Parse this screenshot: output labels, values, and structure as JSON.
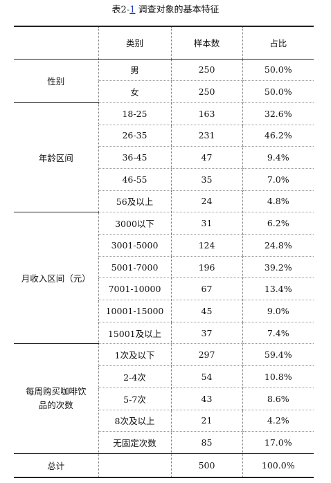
{
  "caption": {
    "prefix": "表2-",
    "number": "1",
    "title": "调查对象的基本特征"
  },
  "headers": {
    "group": "",
    "category": "类别",
    "count": "样本数",
    "share": "占比"
  },
  "groups": [
    {
      "name": "性别",
      "rows": [
        {
          "category": "男",
          "count": "250",
          "share": "50.0%"
        },
        {
          "category": "女",
          "count": "250",
          "share": "50.0%"
        }
      ]
    },
    {
      "name": "年龄区间",
      "rows": [
        {
          "category": "18-25",
          "count": "163",
          "share": "32.6%"
        },
        {
          "category": "26-35",
          "count": "231",
          "share": "46.2%"
        },
        {
          "category": "36-45",
          "count": "47",
          "share": "9.4%"
        },
        {
          "category": "46-55",
          "count": "35",
          "share": "7.0%"
        },
        {
          "category": "56及以上",
          "count": "24",
          "share": "4.8%"
        }
      ]
    },
    {
      "name": "月收入区间（元）",
      "rows": [
        {
          "category": "3000以下",
          "count": "31",
          "share": "6.2%"
        },
        {
          "category": "3001-5000",
          "count": "124",
          "share": "24.8%"
        },
        {
          "category": "5001-7000",
          "count": "196",
          "share": "39.2%"
        },
        {
          "category": "7001-10000",
          "count": "67",
          "share": "13.4%"
        },
        {
          "category": "10001-15000",
          "count": "45",
          "share": "9.0%"
        },
        {
          "category": "15001及以上",
          "count": "37",
          "share": "7.4%"
        }
      ]
    },
    {
      "name": "每周购买咖啡饮品的次数",
      "rows": [
        {
          "category": "1次及以下",
          "count": "297",
          "share": "59.4%"
        },
        {
          "category": "2-4次",
          "count": "54",
          "share": "10.8%"
        },
        {
          "category": "5-7次",
          "count": "43",
          "share": "8.6%"
        },
        {
          "category": "8次及以上",
          "count": "21",
          "share": "4.2%"
        },
        {
          "category": "无固定次数",
          "count": "85",
          "share": "17.0%"
        }
      ]
    }
  ],
  "total": {
    "label": "总计",
    "count": "500",
    "share": "100.0%"
  }
}
